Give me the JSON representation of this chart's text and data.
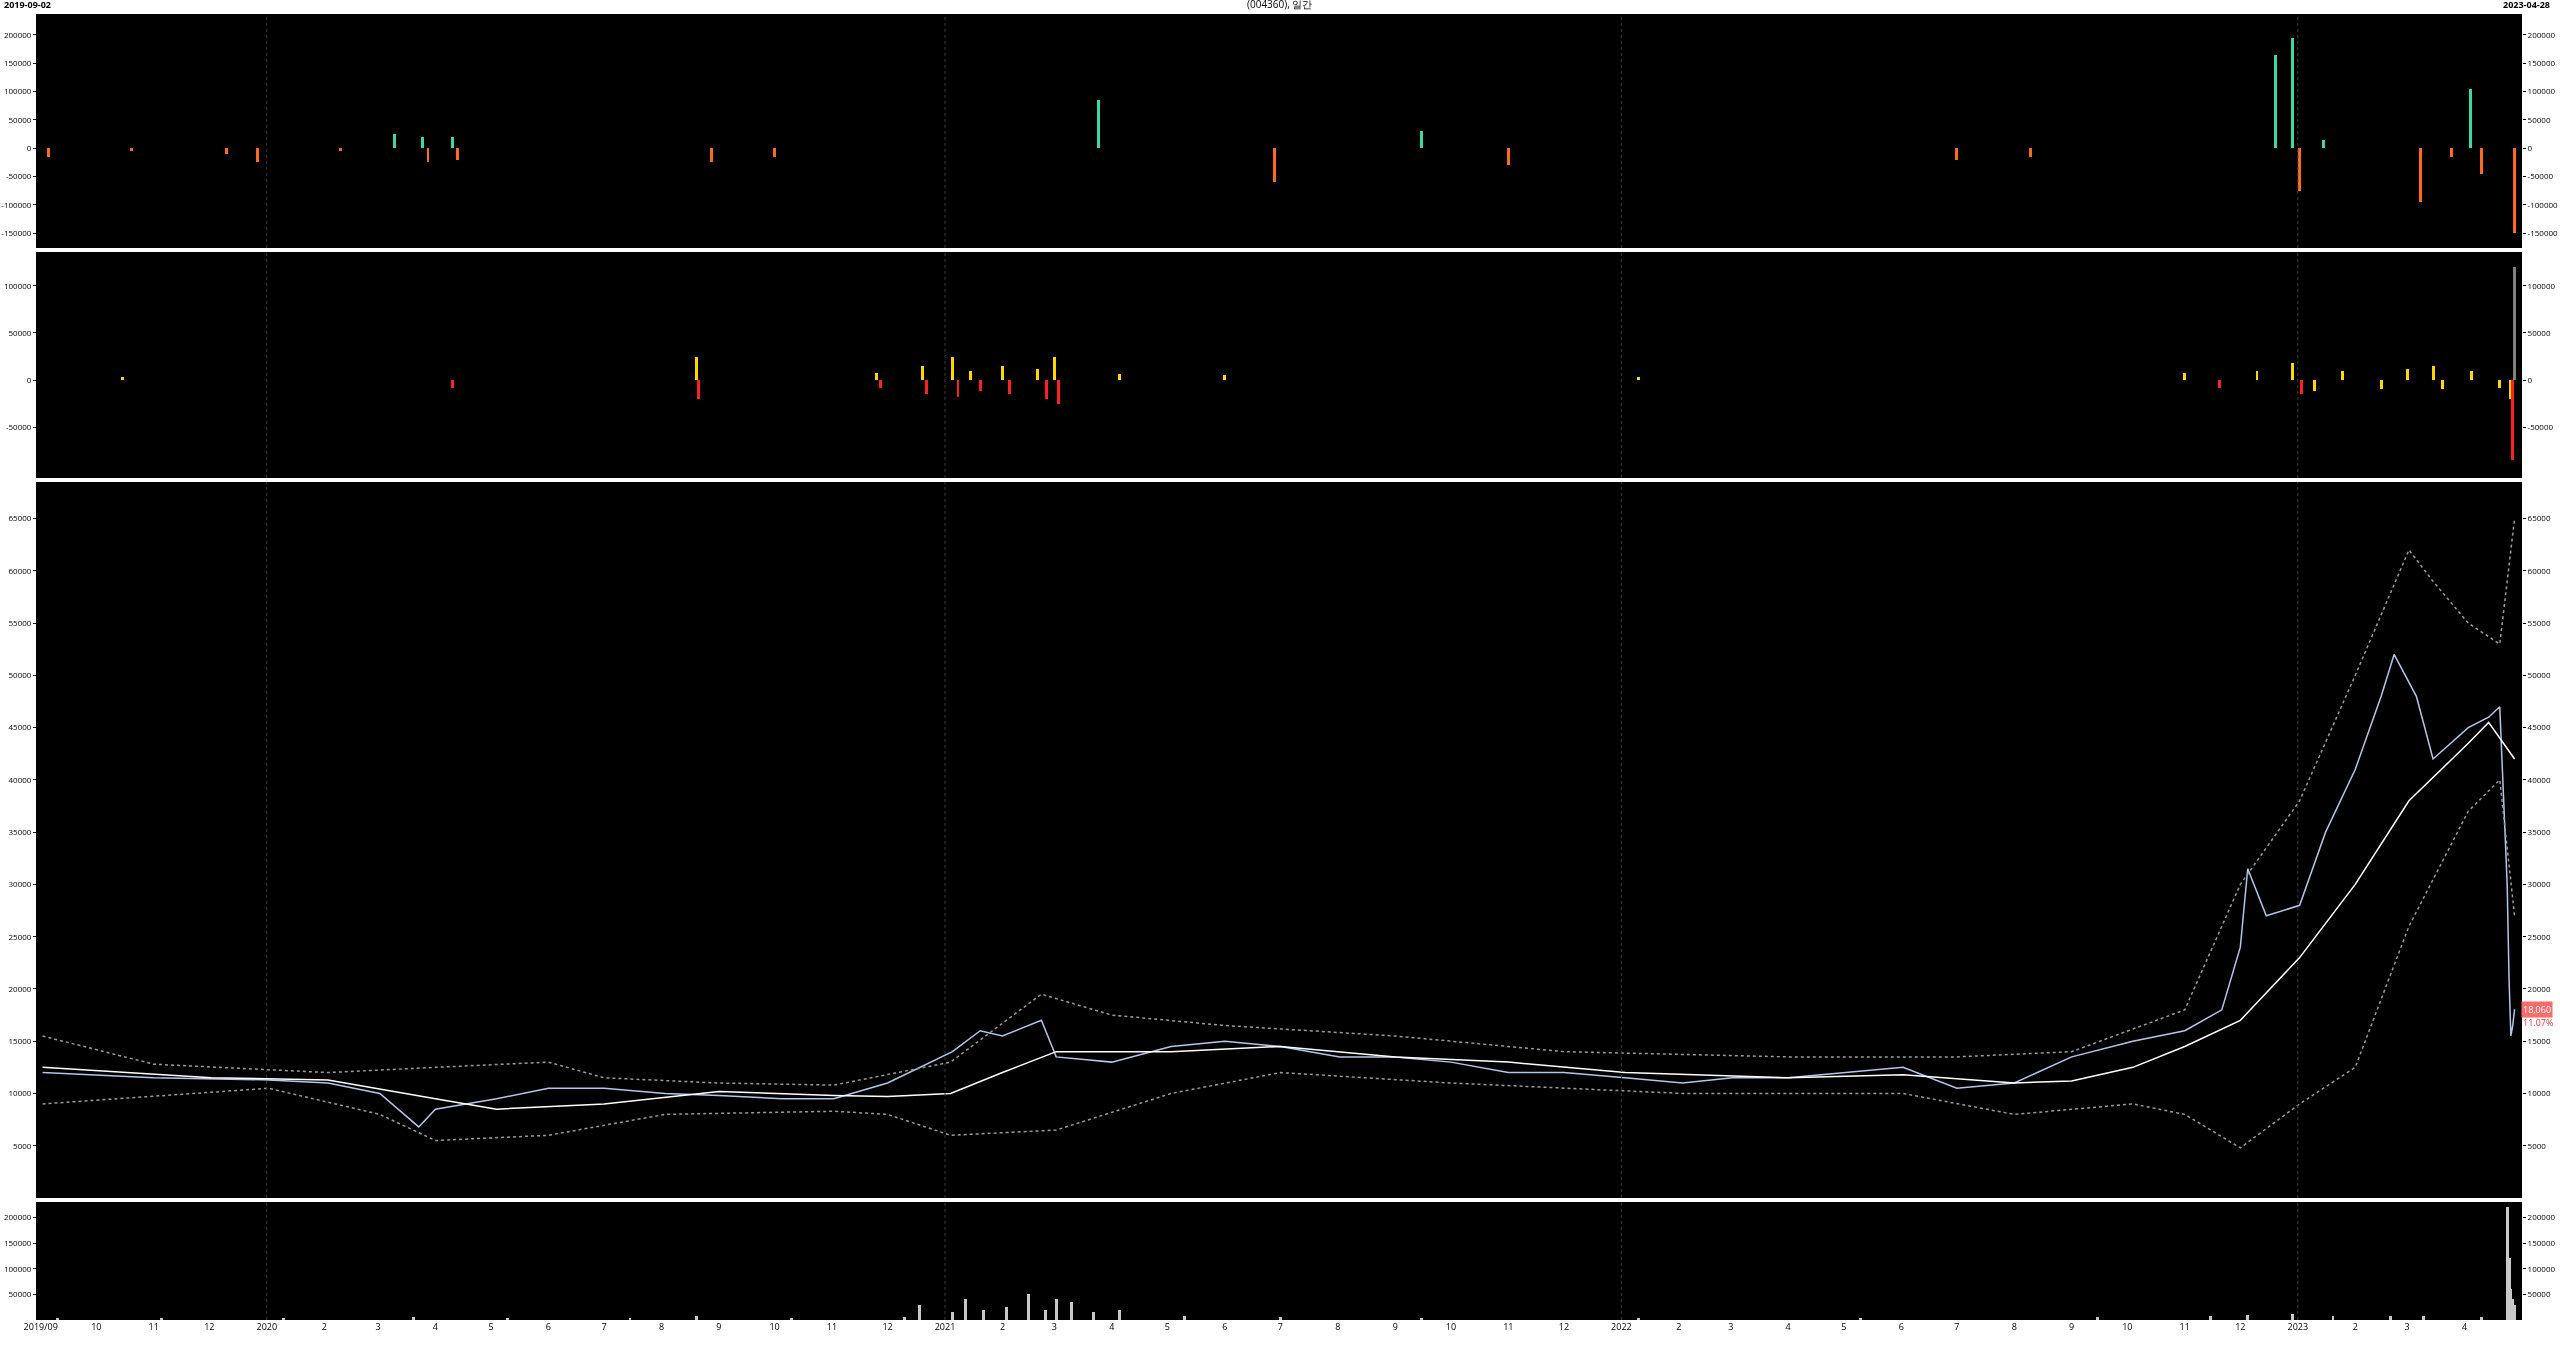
{
  "chart_data": [
    {
      "type": "bar",
      "title": "(004360), 일간",
      "annotations": [
        "2019-09-02",
        "2023-04-28"
      ],
      "x": [
        "2019-09-05",
        "2019-10-20",
        "2019-12-10",
        "2019-12-27",
        "2020-02-10",
        "2020-03-10",
        "2020-03-25",
        "2020-03-28",
        "2020-04-10",
        "2020-04-13",
        "2020-08-28",
        "2020-10-01",
        "2021-03-25",
        "2021-06-28",
        "2021-09-15",
        "2021-11-01",
        "2022-07-01",
        "2022-08-10",
        "2022-12-20",
        "2022-12-29",
        "2023-01-02",
        "2023-01-15",
        "2023-03-08",
        "2023-03-25",
        "2023-04-04",
        "2023-04-10",
        "2023-04-28"
      ],
      "values": [
        -15000,
        -5000,
        -10000,
        -25000,
        -5000,
        25000,
        20000,
        -25000,
        20000,
        -20000,
        -25000,
        -15000,
        85000,
        -60000,
        30000,
        -30000,
        -20000,
        -15000,
        165000,
        195000,
        -75000,
        15000,
        -95000,
        -15000,
        105000,
        -45000,
        -150000
      ],
      "colors": [
        "#ff6a1e",
        "#ff6a1e",
        "#ff6a1e",
        "#ff6a1e",
        "#ff6a1e",
        "#3cd9a8",
        "#3cd9a8",
        "#ff6a1e",
        "#3cd9a8",
        "#ff6a1e",
        "#ff6a1e",
        "#ff6a1e",
        "#3cd9a8",
        "#ff6a1e",
        "#3cd9a8",
        "#ff6a1e",
        "#ff6a1e",
        "#ff6a1e",
        "#3cd9a8",
        "#3cd9a8",
        "#ff6a1e",
        "#3cd9a8",
        "#ff6a1e",
        "#ff6a1e",
        "#3cd9a8",
        "#ff6a1e",
        "#ff6a1e"
      ],
      "xlim": [
        "2019-08-30",
        "2023-05-02"
      ],
      "ylim": [
        -176000,
        237000
      ],
      "yticks": [
        -150000,
        -100000,
        -50000,
        0,
        50000,
        100000,
        150000,
        200000
      ],
      "y2lim": [
        -176000,
        237000
      ],
      "y2ticks": [
        -150000,
        -100000,
        -50000,
        0,
        50000,
        100000,
        150000,
        200000
      ],
      "tick_labels": "y",
      "ref_lines": [
        {
          "axis": "x",
          "value": "2020-01-01",
          "color": "#3a3a3a",
          "line_style": "dotted"
        },
        {
          "axis": "x",
          "value": "2021-01-01",
          "color": "#3a3a3a",
          "line_style": "dotted"
        },
        {
          "axis": "x",
          "value": "2022-01-01",
          "color": "#3a3a3a",
          "line_style": "dotted"
        },
        {
          "axis": "x",
          "value": "2023-01-01",
          "color": "#3a3a3a",
          "line_style": "dotted"
        }
      ]
    },
    {
      "type": "bar",
      "x": [
        "2019-10-15",
        "2020-04-10",
        "2020-08-20",
        "2020-08-21",
        "2020-11-25",
        "2020-11-27",
        "2020-12-20",
        "2020-12-22",
        "2021-01-05",
        "2021-01-08",
        "2021-01-15",
        "2021-01-20",
        "2021-02-01",
        "2021-02-05",
        "2021-02-20",
        "2021-02-25",
        "2021-03-01",
        "2021-03-03",
        "2021-04-05",
        "2021-06-01",
        "2022-01-10",
        "2022-11-01",
        "2022-11-20",
        "2022-12-10",
        "2022-12-29",
        "2023-01-03",
        "2023-01-10",
        "2023-01-25",
        "2023-02-15",
        "2023-03-01",
        "2023-03-15",
        "2023-03-20",
        "2023-04-05",
        "2023-04-20",
        "2023-04-26",
        "2023-04-27",
        "2023-04-28"
      ],
      "values": [
        3000,
        -8000,
        25000,
        -20000,
        8000,
        -8000,
        15000,
        -15000,
        25000,
        -18000,
        10000,
        -12000,
        15000,
        -15000,
        12000,
        -20000,
        25000,
        -25000,
        6000,
        5000,
        3000,
        8000,
        -8000,
        10000,
        18000,
        -15000,
        -12000,
        10000,
        -10000,
        12000,
        15000,
        -10000,
        10000,
        -8000,
        -20000,
        -85000,
        120000
      ],
      "colors": [
        "#ffd700",
        "#ff2020",
        "#ffd700",
        "#ff2020",
        "#ffd700",
        "#ff2020",
        "#ffd700",
        "#ff2020",
        "#ffd700",
        "#ff2020",
        "#ffd700",
        "#ff2020",
        "#ffd700",
        "#ff2020",
        "#ffd700",
        "#ff2020",
        "#ffd700",
        "#ff2020",
        "#ffd700",
        "#ffd700",
        "#ffd700",
        "#ffd700",
        "#ff2020",
        "#ffd700",
        "#ffd700",
        "#ff2020",
        "#ffd700",
        "#ffd700",
        "#ffd700",
        "#ffd700",
        "#ffd700",
        "#ffd700",
        "#ffd700",
        "#ffd700",
        "#ffd700",
        "#ff2020",
        "#808080"
      ],
      "xlim": [
        "2019-08-30",
        "2023-05-02"
      ],
      "ylim": [
        -104000,
        136000
      ],
      "yticks": [
        -50000,
        0,
        50000,
        100000
      ],
      "y2lim": [
        -104000,
        136000
      ],
      "y2ticks": [
        -50000,
        0,
        50000,
        100000
      ],
      "tick_labels": "y",
      "ref_lines": [
        {
          "axis": "x",
          "value": "2020-01-01",
          "color": "#3a3a3a",
          "line_style": "dotted"
        },
        {
          "axis": "x",
          "value": "2021-01-01",
          "color": "#3a3a3a",
          "line_style": "dotted"
        },
        {
          "axis": "x",
          "value": "2022-01-01",
          "color": "#3a3a3a",
          "line_style": "dotted"
        },
        {
          "axis": "x",
          "value": "2023-01-01",
          "color": "#3a3a3a",
          "line_style": "dotted"
        }
      ]
    },
    {
      "type": "line",
      "annotations": [
        {
          "text": "18,060",
          "x": "2023-04-28",
          "y": 18060
        },
        "11.07%"
      ],
      "series": [
        {
          "color": "#b0c8e8",
          "line_style": "solid",
          "x": [
            "2019-09-02",
            "2019-11-01",
            "2020-01-02",
            "2020-02-03",
            "2020-03-02",
            "2020-03-23",
            "2020-04-01",
            "2020-05-04",
            "2020-06-01",
            "2020-07-01",
            "2020-08-03",
            "2020-09-01",
            "2020-10-05",
            "2020-11-02",
            "2020-12-01",
            "2021-01-05",
            "2021-01-20",
            "2021-02-01",
            "2021-02-22",
            "2021-03-02",
            "2021-04-01",
            "2021-05-03",
            "2021-06-01",
            "2021-07-01",
            "2021-08-02",
            "2021-09-01",
            "2021-10-01",
            "2021-11-01",
            "2021-12-01",
            "2022-01-03",
            "2022-02-03",
            "2022-03-02",
            "2022-04-01",
            "2022-05-02",
            "2022-06-02",
            "2022-07-01",
            "2022-08-01",
            "2022-09-01",
            "2022-10-04",
            "2022-11-01",
            "2022-11-21",
            "2022-12-01",
            "2022-12-05",
            "2022-12-15",
            "2023-01-02",
            "2023-01-16",
            "2023-02-01",
            "2023-02-15",
            "2023-02-22",
            "2023-03-06",
            "2023-03-15",
            "2023-04-03",
            "2023-04-14",
            "2023-04-20",
            "2023-04-24",
            "2023-04-25",
            "2023-04-26",
            "2023-04-27",
            "2023-04-28"
          ],
          "values": [
            12000,
            11500,
            11300,
            11000,
            10000,
            6800,
            8500,
            9500,
            10500,
            10500,
            10000,
            9800,
            9500,
            9500,
            11000,
            14000,
            16000,
            15500,
            17000,
            13500,
            13000,
            14500,
            15000,
            14500,
            13500,
            13500,
            13000,
            12000,
            12000,
            11500,
            11000,
            11500,
            11500,
            12000,
            12500,
            10500,
            11000,
            13500,
            15000,
            16000,
            18000,
            24000,
            31500,
            27000,
            28000,
            35000,
            41000,
            48000,
            52000,
            48000,
            42000,
            45000,
            46000,
            47000,
            30000,
            21000,
            15500,
            16500,
            18060
          ]
        },
        {
          "color": "#ffffff",
          "line_style": "solid",
          "x": [
            "2019-09-02",
            "2019-12-02",
            "2020-02-03",
            "2020-04-01",
            "2020-05-04",
            "2020-07-01",
            "2020-09-01",
            "2020-11-02",
            "2020-12-01",
            "2021-01-04",
            "2021-02-01",
            "2021-03-02",
            "2021-05-03",
            "2021-07-01",
            "2021-09-01",
            "2021-11-01",
            "2022-01-03",
            "2022-04-01",
            "2022-06-02",
            "2022-08-01",
            "2022-09-01",
            "2022-10-04",
            "2022-11-01",
            "2022-12-01",
            "2023-01-02",
            "2023-02-01",
            "2023-03-02",
            "2023-04-03",
            "2023-04-14",
            "2023-04-28"
          ],
          "values": [
            12500,
            11500,
            11300,
            9500,
            8500,
            9000,
            10200,
            9800,
            9700,
            10000,
            12000,
            14000,
            14000,
            14500,
            13500,
            13000,
            12000,
            11500,
            11800,
            11000,
            11200,
            12500,
            14500,
            17000,
            23000,
            30000,
            38000,
            43500,
            45500,
            42000
          ]
        },
        {
          "color": "#9a9a9a",
          "line_style": "dotted",
          "x": [
            "2019-09-02",
            "2019-11-01",
            "2020-02-03",
            "2020-04-01",
            "2020-06-01",
            "2020-07-01",
            "2020-09-01",
            "2020-11-02",
            "2021-01-04",
            "2021-02-22",
            "2021-04-01",
            "2021-06-01",
            "2021-09-01",
            "2021-12-01",
            "2022-04-01",
            "2022-07-01",
            "2022-09-01",
            "2022-11-01",
            "2022-12-01",
            "2023-01-02",
            "2023-02-01",
            "2023-03-02",
            "2023-03-15",
            "2023-04-03",
            "2023-04-20",
            "2023-04-28"
          ],
          "values": [
            15500,
            12800,
            12000,
            12500,
            13000,
            11500,
            11000,
            10800,
            13000,
            19500,
            17500,
            16500,
            15500,
            14000,
            13500,
            13500,
            14000,
            18000,
            30000,
            38000,
            50000,
            62000,
            59000,
            55000,
            53000,
            65000
          ]
        },
        {
          "color": "#9a9a9a",
          "line_style": "dotted",
          "x": [
            "2019-09-02",
            "2020-01-02",
            "2020-03-02",
            "2020-04-01",
            "2020-06-01",
            "2020-08-03",
            "2020-11-02",
            "2020-12-01",
            "2021-01-04",
            "2021-03-02",
            "2021-05-03",
            "2021-07-01",
            "2021-10-01",
            "2022-02-03",
            "2022-06-02",
            "2022-08-01",
            "2022-10-04",
            "2022-11-01",
            "2022-12-01",
            "2023-01-02",
            "2023-02-01",
            "2023-03-02",
            "2023-04-03",
            "2023-04-20",
            "2023-04-28"
          ],
          "values": [
            9000,
            10500,
            8000,
            5500,
            6000,
            8000,
            8300,
            8000,
            6000,
            6500,
            10000,
            12000,
            11000,
            10000,
            10000,
            8000,
            9000,
            8000,
            4800,
            9000,
            12500,
            26000,
            37000,
            40000,
            27000
          ]
        }
      ],
      "xlim": [
        "2019-08-30",
        "2023-05-02"
      ],
      "ylim": [
        0,
        68500
      ],
      "yticks": [
        5000,
        10000,
        15000,
        20000,
        25000,
        30000,
        35000,
        40000,
        45000,
        50000,
        55000,
        60000,
        65000
      ],
      "y2lim": [
        0,
        68500
      ],
      "y2ticks": [
        5000,
        10000,
        15000,
        20000,
        25000,
        30000,
        35000,
        40000,
        45000,
        50000,
        55000,
        60000,
        65000
      ],
      "tick_labels": "y",
      "ref_lines": [
        {
          "axis": "x",
          "value": "2020-01-01",
          "color": "#3a3a3a",
          "line_style": "dotted"
        },
        {
          "axis": "x",
          "value": "2021-01-01",
          "color": "#3a3a3a",
          "line_style": "dotted"
        },
        {
          "axis": "x",
          "value": "2022-01-01",
          "color": "#3a3a3a",
          "line_style": "dotted"
        },
        {
          "axis": "x",
          "value": "2023-01-01",
          "color": "#3a3a3a",
          "line_style": "dotted"
        }
      ]
    },
    {
      "type": "bar",
      "color": "#c8c8c8",
      "x": [
        "2019-09-10",
        "2019-11-05",
        "2020-01-10",
        "2020-03-20",
        "2020-05-10",
        "2020-07-15",
        "2020-08-20",
        "2020-10-10",
        "2020-12-10",
        "2020-12-18",
        "2021-01-05",
        "2021-01-12",
        "2021-01-22",
        "2021-02-03",
        "2021-02-15",
        "2021-02-24",
        "2021-03-02",
        "2021-03-10",
        "2021-03-22",
        "2021-04-05",
        "2021-05-10",
        "2021-07-01",
        "2021-09-15",
        "2022-01-10",
        "2022-05-10",
        "2022-09-15",
        "2022-11-15",
        "2022-12-05",
        "2022-12-29",
        "2023-01-20",
        "2023-02-20",
        "2023-03-10",
        "2023-04-10",
        "2023-04-24",
        "2023-04-25",
        "2023-04-26",
        "2023-04-27",
        "2023-04-28"
      ],
      "values": [
        3000,
        2000,
        2000,
        5000,
        3000,
        3000,
        8000,
        2000,
        5000,
        30000,
        15000,
        40000,
        20000,
        25000,
        50000,
        20000,
        40000,
        35000,
        15000,
        20000,
        8000,
        5000,
        4000,
        3000,
        3000,
        5000,
        8000,
        10000,
        12000,
        8000,
        8000,
        8000,
        5000,
        220000,
        120000,
        60000,
        40000,
        30000
      ],
      "xlim": [
        "2019-08-30",
        "2023-05-02"
      ],
      "ylim": [
        0,
        230000
      ],
      "yticks": [
        50000,
        100000,
        150000,
        200000
      ],
      "y2lim": [
        0,
        230000
      ],
      "y2ticks": [
        50000,
        100000,
        150000,
        200000
      ],
      "xticks": [
        {
          "value": "2019-09-01",
          "label": "2019/09"
        },
        {
          "value": "2019-10-01",
          "label": "10"
        },
        {
          "value": "2019-11-01",
          "label": "11"
        },
        {
          "value": "2019-12-01",
          "label": "12"
        },
        {
          "value": "2020-01-01",
          "label": "2020"
        },
        {
          "value": "2020-02-01",
          "label": "2"
        },
        {
          "value": "2020-03-01",
          "label": "3"
        },
        {
          "value": "2020-04-01",
          "label": "4"
        },
        {
          "value": "2020-05-01",
          "label": "5"
        },
        {
          "value": "2020-06-01",
          "label": "6"
        },
        {
          "value": "2020-07-01",
          "label": "7"
        },
        {
          "value": "2020-08-01",
          "label": "8"
        },
        {
          "value": "2020-09-01",
          "label": "9"
        },
        {
          "value": "2020-10-01",
          "label": "10"
        },
        {
          "value": "2020-11-01",
          "label": "11"
        },
        {
          "value": "2020-12-01",
          "label": "12"
        },
        {
          "value": "2021-01-01",
          "label": "2021"
        },
        {
          "value": "2021-02-01",
          "label": "2"
        },
        {
          "value": "2021-03-01",
          "label": "3"
        },
        {
          "value": "2021-04-01",
          "label": "4"
        },
        {
          "value": "2021-05-01",
          "label": "5"
        },
        {
          "value": "2021-06-01",
          "label": "6"
        },
        {
          "value": "2021-07-01",
          "label": "7"
        },
        {
          "value": "2021-08-01",
          "label": "8"
        },
        {
          "value": "2021-09-01",
          "label": "9"
        },
        {
          "value": "2021-10-01",
          "label": "10"
        },
        {
          "value": "2021-11-01",
          "label": "11"
        },
        {
          "value": "2021-12-01",
          "label": "12"
        },
        {
          "value": "2022-01-01",
          "label": "2022"
        },
        {
          "value": "2022-02-01",
          "label": "2"
        },
        {
          "value": "2022-03-01",
          "label": "3"
        },
        {
          "value": "2022-04-01",
          "label": "4"
        },
        {
          "value": "2022-05-01",
          "label": "5"
        },
        {
          "value": "2022-06-01",
          "label": "6"
        },
        {
          "value": "2022-07-01",
          "label": "7"
        },
        {
          "value": "2022-08-01",
          "label": "8"
        },
        {
          "value": "2022-09-01",
          "label": "9"
        },
        {
          "value": "2022-10-01",
          "label": "10"
        },
        {
          "value": "2022-11-01",
          "label": "11"
        },
        {
          "value": "2022-12-01",
          "label": "12"
        },
        {
          "value": "2023-01-01",
          "label": "2023"
        },
        {
          "value": "2023-02-01",
          "label": "2"
        },
        {
          "value": "2023-03-01",
          "label": "3"
        },
        {
          "value": "2023-04-01",
          "label": "4"
        }
      ],
      "ref_lines": [
        {
          "axis": "x",
          "value": "2020-01-01",
          "color": "#3a3a3a",
          "line_style": "dotted"
        },
        {
          "axis": "x",
          "value": "2021-01-01",
          "color": "#3a3a3a",
          "line_style": "dotted"
        },
        {
          "axis": "x",
          "value": "2022-01-01",
          "color": "#3a3a3a",
          "line_style": "dotted"
        },
        {
          "axis": "x",
          "value": "2023-01-01",
          "color": "#3a3a3a",
          "line_style": "dotted"
        }
      ]
    }
  ]
}
